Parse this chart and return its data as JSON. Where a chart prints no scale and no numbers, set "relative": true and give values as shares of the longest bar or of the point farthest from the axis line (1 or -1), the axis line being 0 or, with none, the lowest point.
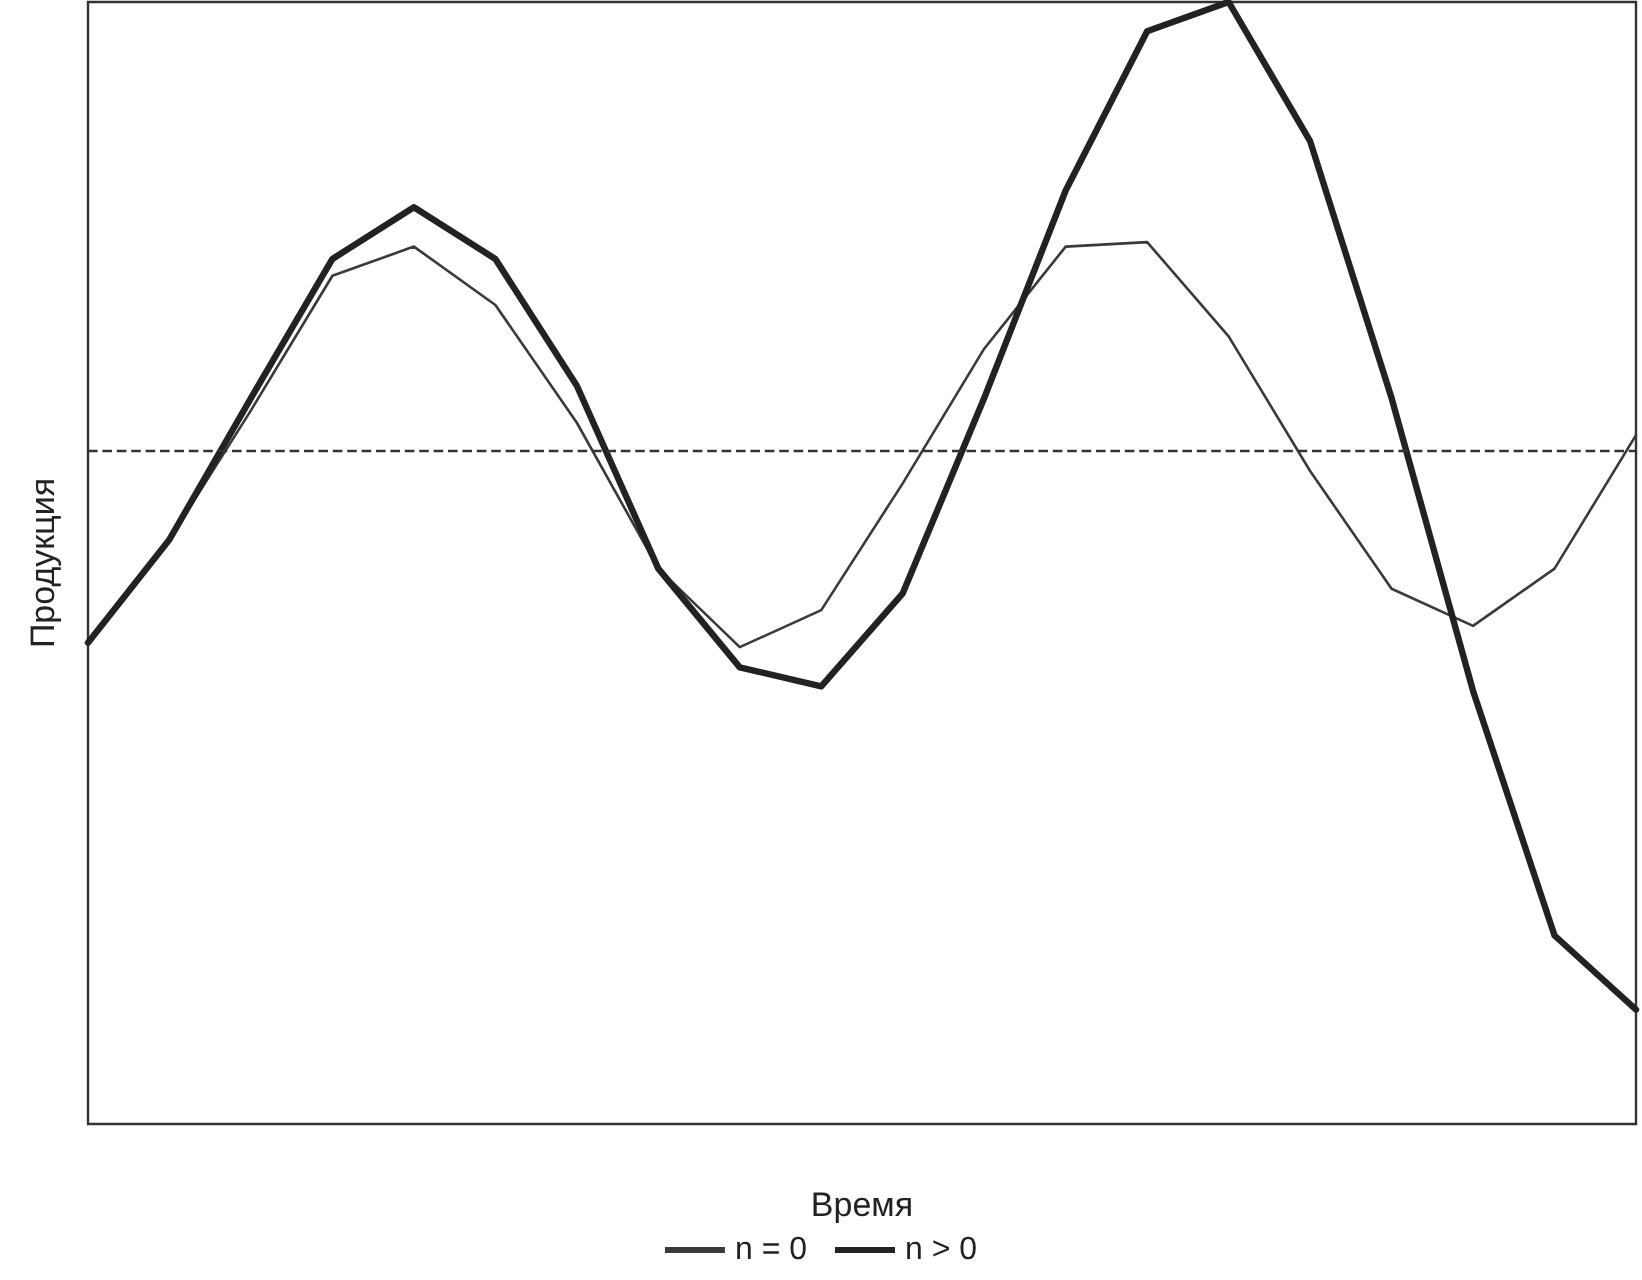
{
  "chart_data": {
    "type": "line",
    "relative": true,
    "xlabel": "Время",
    "ylabel": "Продукция",
    "categories": [
      null,
      null,
      null,
      null,
      null,
      null,
      null,
      null,
      null,
      null,
      null,
      null,
      null,
      null,
      null,
      null,
      null,
      null,
      null,
      null
    ],
    "series": [
      {
        "name": "n = 0",
        "color": "#3a3a3a",
        "values": [
          0.429,
          0.521,
          0.636,
          0.756,
          0.782,
          0.73,
          0.625,
          0.495,
          0.425,
          0.458,
          0.571,
          0.691,
          0.782,
          0.786,
          0.702,
          0.582,
          0.477,
          0.444,
          0.495,
          0.614
        ]
      },
      {
        "name": "n > 0",
        "color": "#222222",
        "values": [
          0.429,
          0.521,
          0.647,
          0.771,
          0.817,
          0.771,
          0.658,
          0.495,
          0.407,
          0.39,
          0.473,
          0.647,
          0.832,
          0.974,
          1,
          0.876,
          0.647,
          0.386,
          0.168,
          0.102
        ]
      }
    ],
    "ref_lines": [
      {
        "axis": "y",
        "value": 0.603,
        "color": "#333333",
        "line_style": "dashed"
      }
    ],
    "grid": false,
    "legend": "bottom",
    "marker": "none",
    "line_style": "solid"
  }
}
